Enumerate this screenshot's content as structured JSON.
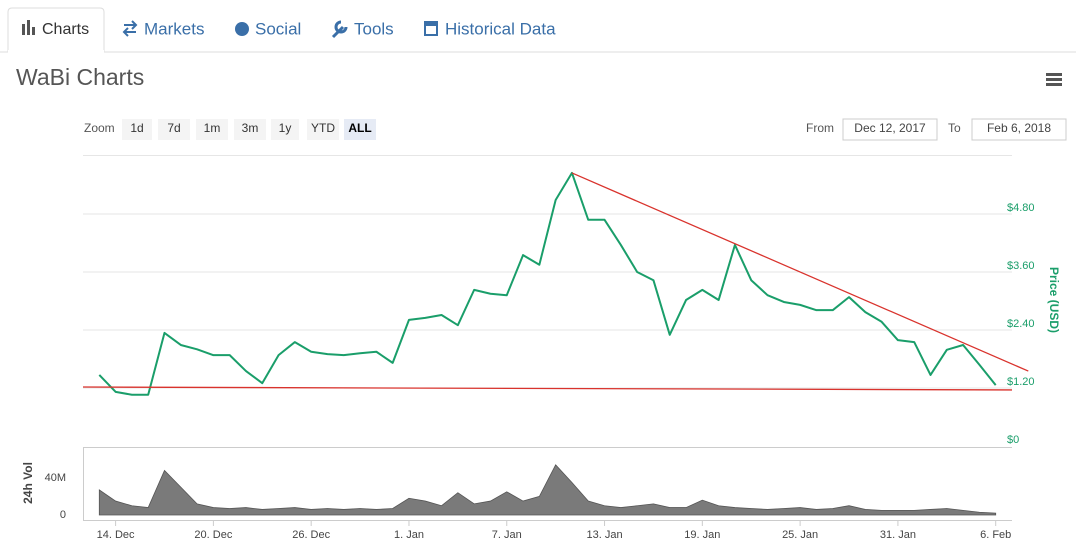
{
  "tabs": [
    "Charts",
    "Markets",
    "Social",
    "Tools",
    "Historical Data"
  ],
  "title": "WaBi Charts",
  "zoom": {
    "label": "Zoom",
    "buttons": [
      "1d",
      "7d",
      "1m",
      "3m",
      "1y",
      "YTD",
      "ALL"
    ],
    "selected": 6
  },
  "range": {
    "from_label": "From",
    "from": "Dec 12, 2017",
    "to_label": "To",
    "to": "Feb 6, 2018"
  },
  "chart_data": [
    {
      "type": "line",
      "ylabel": "Price (USD)",
      "color": "#1a9e6a",
      "x": [
        "2017-12-13",
        "2017-12-14",
        "2017-12-15",
        "2017-12-16",
        "2017-12-17",
        "2017-12-18",
        "2017-12-19",
        "2017-12-20",
        "2017-12-21",
        "2017-12-22",
        "2017-12-23",
        "2017-12-24",
        "2017-12-25",
        "2017-12-26",
        "2017-12-27",
        "2017-12-28",
        "2017-12-29",
        "2017-12-30",
        "2017-12-31",
        "2018-01-01",
        "2018-01-02",
        "2018-01-03",
        "2018-01-04",
        "2018-01-05",
        "2018-01-06",
        "2018-01-07",
        "2018-01-08",
        "2018-01-09",
        "2018-01-10",
        "2018-01-11",
        "2018-01-12",
        "2018-01-13",
        "2018-01-14",
        "2018-01-15",
        "2018-01-16",
        "2018-01-17",
        "2018-01-18",
        "2018-01-19",
        "2018-01-20",
        "2018-01-21",
        "2018-01-22",
        "2018-01-23",
        "2018-01-24",
        "2018-01-25",
        "2018-01-26",
        "2018-01-27",
        "2018-01-28",
        "2018-01-29",
        "2018-01-30",
        "2018-01-31",
        "2018-02-01",
        "2018-02-02",
        "2018-02-03",
        "2018-02-04",
        "2018-02-05",
        "2018-02-06"
      ],
      "values": [
        1.47,
        1.12,
        1.06,
        1.06,
        2.34,
        2.09,
        2.0,
        1.88,
        1.88,
        1.55,
        1.3,
        1.88,
        2.15,
        1.95,
        1.9,
        1.88,
        1.92,
        1.95,
        1.72,
        2.61,
        2.65,
        2.71,
        2.5,
        3.23,
        3.15,
        3.12,
        3.95,
        3.75,
        5.09,
        5.65,
        4.68,
        4.68,
        4.16,
        3.6,
        3.43,
        2.3,
        3.02,
        3.23,
        3.02,
        4.16,
        3.43,
        3.12,
        2.98,
        2.92,
        2.81,
        2.81,
        3.08,
        2.77,
        2.57,
        2.19,
        2.15,
        1.47,
        1.99,
        2.09,
        1.68,
        1.26
      ],
      "xlim": [
        "2017-12-12",
        "2018-02-07"
      ],
      "ylim": [
        0,
        6
      ],
      "yticks": [
        {
          "value": 0,
          "label": "$0"
        },
        {
          "value": 1.2,
          "label": "$1.20"
        },
        {
          "value": 2.4,
          "label": "$2.40"
        },
        {
          "value": 3.6,
          "label": "$3.60"
        },
        {
          "value": 4.8,
          "label": "$4.80"
        }
      ],
      "grid": true,
      "trendlines": [
        {
          "color": "#d9332d",
          "x": [
            "2018-01-11",
            "2018-02-08"
          ],
          "values": [
            5.65,
            1.55
          ]
        },
        {
          "color": "#d9332d",
          "x": [
            "2017-12-12",
            "2018-02-07"
          ],
          "values": [
            1.22,
            1.16
          ]
        }
      ]
    },
    {
      "type": "area",
      "ylabel": "24h Vol",
      "color": "#7a7a7a",
      "x": [
        "2017-12-13",
        "2017-12-14",
        "2017-12-15",
        "2017-12-16",
        "2017-12-17",
        "2017-12-18",
        "2017-12-19",
        "2017-12-20",
        "2017-12-21",
        "2017-12-22",
        "2017-12-23",
        "2017-12-24",
        "2017-12-25",
        "2017-12-26",
        "2017-12-27",
        "2017-12-28",
        "2017-12-29",
        "2017-12-30",
        "2017-12-31",
        "2018-01-01",
        "2018-01-02",
        "2018-01-03",
        "2018-01-04",
        "2018-01-05",
        "2018-01-06",
        "2018-01-07",
        "2018-01-08",
        "2018-01-09",
        "2018-01-10",
        "2018-01-11",
        "2018-01-12",
        "2018-01-13",
        "2018-01-14",
        "2018-01-15",
        "2018-01-16",
        "2018-01-17",
        "2018-01-18",
        "2018-01-19",
        "2018-01-20",
        "2018-01-21",
        "2018-01-22",
        "2018-01-23",
        "2018-01-24",
        "2018-01-25",
        "2018-01-26",
        "2018-01-27",
        "2018-01-28",
        "2018-01-29",
        "2018-01-30",
        "2018-01-31",
        "2018-02-01",
        "2018-02-02",
        "2018-02-03",
        "2018-02-04",
        "2018-02-05",
        "2018-02-06"
      ],
      "values": [
        27000000,
        15000000,
        10000000,
        8000000,
        48000000,
        30000000,
        12000000,
        8000000,
        7000000,
        8000000,
        6000000,
        7000000,
        8000000,
        6000000,
        7000000,
        6000000,
        7000000,
        6000000,
        7000000,
        18000000,
        15000000,
        10000000,
        24000000,
        12000000,
        15000000,
        25000000,
        15000000,
        20000000,
        54000000,
        35000000,
        15000000,
        10000000,
        8000000,
        10000000,
        12000000,
        8000000,
        8000000,
        16000000,
        10000000,
        8000000,
        7000000,
        6000000,
        7000000,
        8000000,
        6000000,
        7000000,
        10000000,
        6000000,
        5000000,
        5000000,
        5000000,
        6000000,
        7000000,
        5000000,
        3000000,
        2000000
      ],
      "xlim": [
        "2017-12-12",
        "2018-02-07"
      ],
      "ylim": [
        0,
        70000000
      ],
      "yticks": [
        0,
        {
          "value": 40000000,
          "label": "40M"
        }
      ],
      "xticks": [
        {
          "value": "2017-12-14",
          "label": "14. Dec"
        },
        {
          "value": "2017-12-20",
          "label": "20. Dec"
        },
        {
          "value": "2017-12-26",
          "label": "26. Dec"
        },
        {
          "value": "2018-01-01",
          "label": "1. Jan"
        },
        {
          "value": "2018-01-07",
          "label": "7. Jan"
        },
        {
          "value": "2018-01-13",
          "label": "13. Jan"
        },
        {
          "value": "2018-01-19",
          "label": "19. Jan"
        },
        {
          "value": "2018-01-25",
          "label": "25. Jan"
        },
        {
          "value": "2018-01-31",
          "label": "31. Jan"
        },
        {
          "value": "2018-02-06",
          "label": "6. Feb"
        }
      ]
    }
  ]
}
